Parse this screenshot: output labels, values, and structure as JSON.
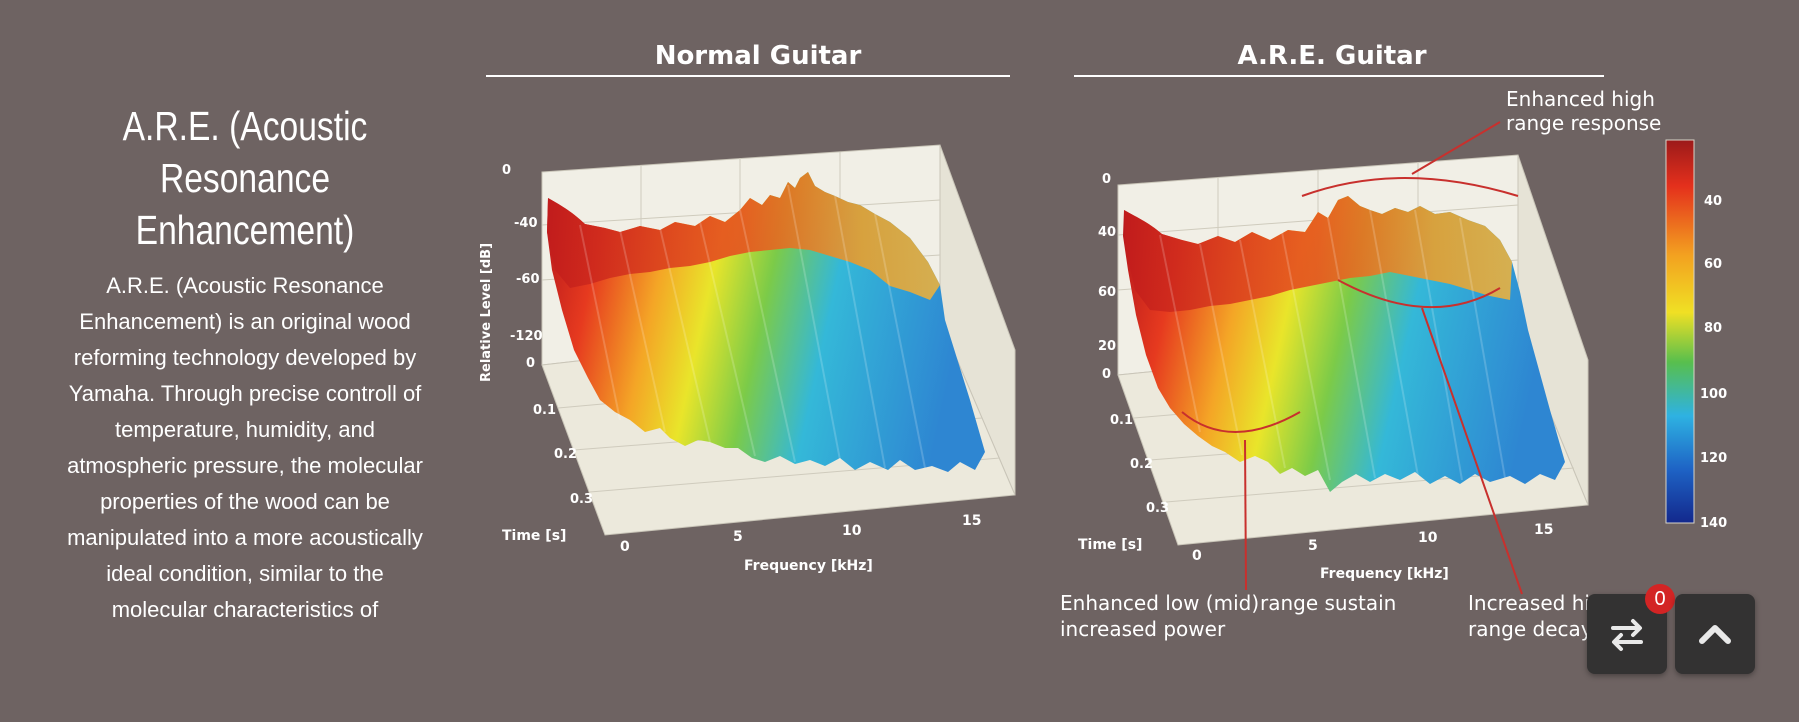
{
  "section": {
    "title": "A.R.E. (Acoustic Resonance Enhancement)",
    "description": "A.R.E. (Acoustic Resonance Enhancement) is an original wood reforming technology developed by Yamaha. Through precise controll of temperature, humidity, and atmospheric pressure, the molecular properties of the wood can be manipulated into a more acoustically ideal condition, similar to the molecular characteristics of"
  },
  "figure": {
    "left_panel": {
      "title": "Normal Guitar",
      "ylabel": "Relative Level [dB]",
      "xlabel": "Frequency [kHz]",
      "zlabel": "Time [s]",
      "level_ticks": [
        "0",
        "-40",
        "-60",
        "-120",
        "0"
      ],
      "time_ticks": [
        "0.1",
        "0.2",
        "0.3"
      ],
      "freq_ticks": [
        "0",
        "5",
        "10",
        "15"
      ]
    },
    "right_panel": {
      "title": "A.R.E. Guitar",
      "xlabel": "Frequency [kHz]",
      "zlabel": "Time [s]",
      "level_ticks": [
        "0",
        "40",
        "60",
        "20",
        "0"
      ],
      "time_ticks": [
        "0.1",
        "0.2",
        "0.3"
      ],
      "freq_ticks": [
        "0",
        "5",
        "10",
        "15"
      ],
      "annotations": {
        "high_response": [
          "Enhanced high",
          "range response"
        ],
        "low_sustain": [
          "Enhanced low (mid)",
          "increased power"
        ],
        "range_sustain": "range sustain",
        "high_decay": [
          "Increased high",
          "range decay"
        ]
      }
    },
    "colorbar": {
      "ticks": [
        "40",
        "60",
        "80",
        "100",
        "120",
        "140"
      ],
      "colors": [
        "#a51a1a",
        "#e8321c",
        "#f3a41f",
        "#f2e224",
        "#5ac14a",
        "#2fb0e0",
        "#1d62c4",
        "#122c8e"
      ]
    }
  },
  "widgets": {
    "compare_count": "0"
  }
}
